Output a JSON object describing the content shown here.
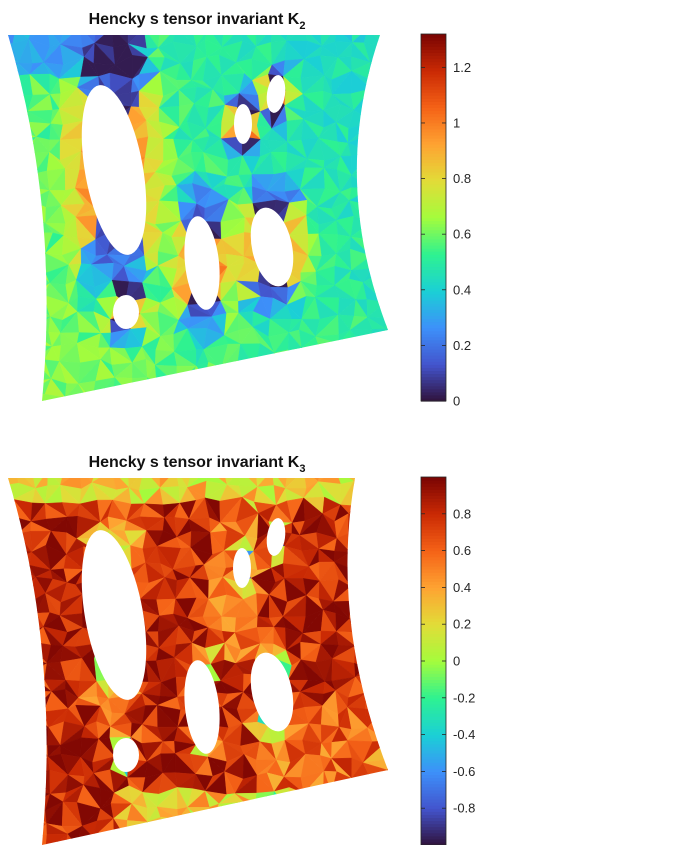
{
  "chart_data": [
    {
      "type": "heatmap",
      "title_text": "Hencky s tensor invariant K",
      "title_subscript": "2",
      "colormap": "turbo",
      "clim": [
        0,
        1.32
      ],
      "colorbar_ticks": [
        0,
        0.2,
        0.4,
        0.6,
        0.8,
        1,
        1.2
      ],
      "colorbar_tick_labels": [
        "0",
        "0.2",
        "0.4",
        "0.6",
        "0.8",
        "1",
        "1.2"
      ],
      "grid": false
    },
    {
      "type": "heatmap",
      "title_text": "Hencky s tensor invariant K",
      "title_subscript": "3",
      "colormap": "turbo",
      "clim": [
        -1,
        1
      ],
      "colorbar_ticks": [
        -0.8,
        -0.6,
        -0.4,
        -0.2,
        0,
        0.2,
        0.4,
        0.6,
        0.8
      ],
      "colorbar_tick_labels": [
        "-0.8",
        "-0.6",
        "-0.4",
        "-0.2",
        "0",
        "0.2",
        "0.4",
        "0.6",
        "0.8"
      ],
      "grid": false
    }
  ]
}
